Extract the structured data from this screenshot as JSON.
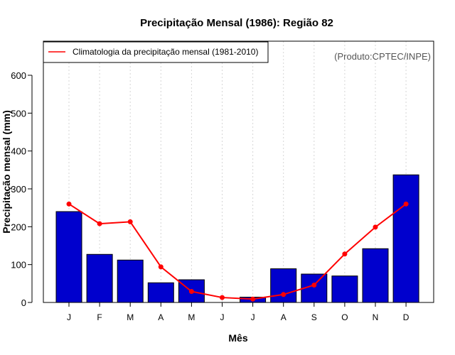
{
  "chart_data": {
    "type": "bar",
    "title": "Precipitação Mensal (1986): Região 82",
    "xlabel": "Mês",
    "ylabel": "Precipitação mensal (mm)",
    "credit": "(Produto:CPTEC/INPE)",
    "ylim": [
      0,
      690
    ],
    "yticks": [
      0,
      100,
      200,
      300,
      400,
      500,
      600
    ],
    "grid": "vertical dotted",
    "legend_position": "top-left",
    "categories": [
      "J",
      "F",
      "M",
      "A",
      "M",
      "J",
      "J",
      "A",
      "S",
      "O",
      "N",
      "D"
    ],
    "series": [
      {
        "name": "Precipitação mensal (1986)",
        "kind": "bar",
        "color": "#0000CD",
        "values": [
          240,
          127,
          112,
          52,
          60,
          0,
          14,
          89,
          75,
          70,
          142,
          337
        ]
      },
      {
        "name": "Climatologia da precipitação mensal (1981-2010)",
        "kind": "line",
        "color": "#FF0000",
        "values": [
          260,
          208,
          213,
          94,
          29,
          13,
          9,
          21,
          46,
          128,
          199,
          260
        ]
      }
    ]
  }
}
